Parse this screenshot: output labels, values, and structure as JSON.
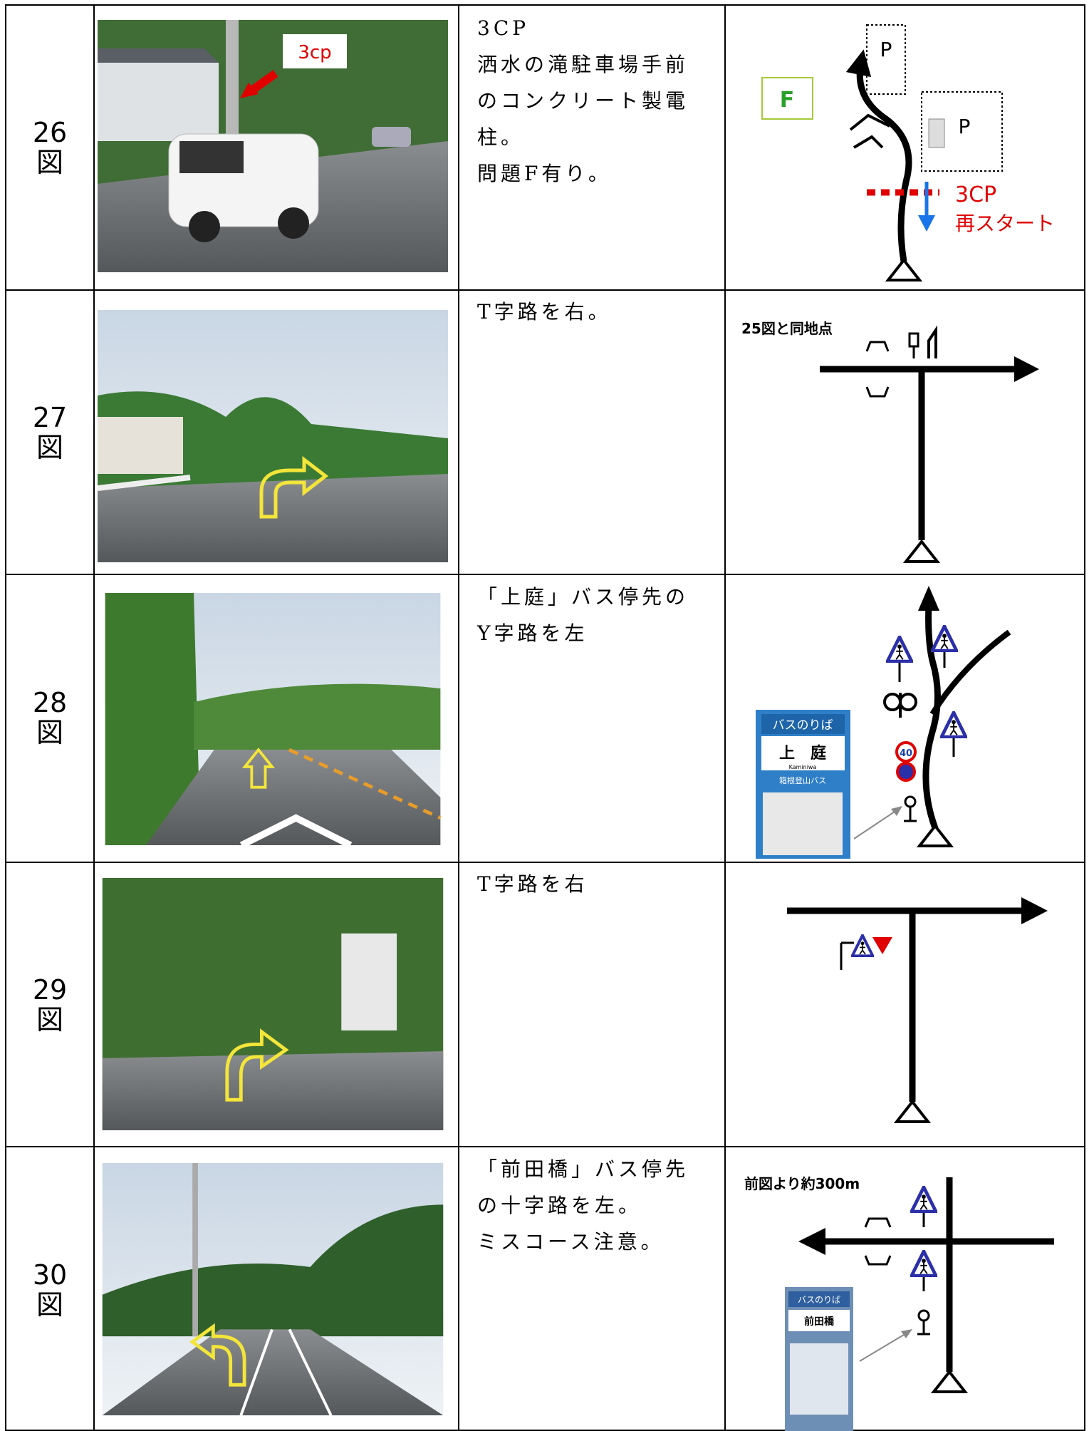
{
  "rows": [
    {
      "number": "26",
      "unit": "図",
      "photo_label": "3cp",
      "text": [
        "3CP",
        "洒水の滝駐車場手前",
        "のコンクリート製電",
        "柱。",
        "問題F有り。"
      ],
      "diagram": {
        "labels": [
          "P",
          "P",
          "F",
          "3CP",
          "再スタート"
        ]
      }
    },
    {
      "number": "27",
      "unit": "図",
      "text": [
        "T字路を右。"
      ],
      "diagram": {
        "note": "25図と同地点"
      }
    },
    {
      "number": "28",
      "unit": "図",
      "text": [
        "「上庭」バス停先の",
        "Y字路を左"
      ],
      "diagram": {
        "sign": [
          "バスのりば",
          "上　庭",
          "Kaminiwa",
          "箱根登山バス"
        ],
        "speed": "40"
      }
    },
    {
      "number": "29",
      "unit": "図",
      "text": [
        "T字路を右"
      ]
    },
    {
      "number": "30",
      "unit": "図",
      "text": [
        "「前田橋」バス停先",
        "の十字路を左。",
        "ミスコース注意。"
      ],
      "diagram": {
        "note": "前図より約300m",
        "sign": [
          "バスのりば",
          "前田橋"
        ]
      }
    }
  ]
}
